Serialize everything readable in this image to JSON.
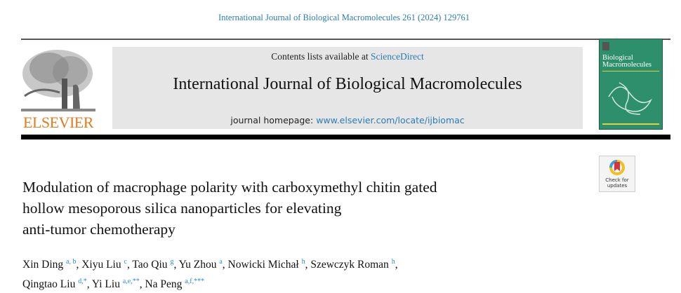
{
  "citation": "International Journal of Biological Macromolecules 261 (2024) 129761",
  "banner": {
    "contents_prefix": "Contents lists available at ",
    "contents_link": "ScienceDirect",
    "journal_title": "International Journal of Biological Macromolecules",
    "homepage_prefix": "journal homepage: ",
    "homepage_link": "www.elsevier.com/locate/ijbiomac"
  },
  "publisher": "ELSEVIER",
  "cover": {
    "title_line1": "Biological",
    "title_line2": "Macromolecules",
    "color": "#2e8f6d"
  },
  "badge": {
    "line1": "Check for",
    "line2": "updates"
  },
  "article": {
    "title_lines": [
      "Modulation of macrophage polarity with carboxymethyl chitin gated",
      "hollow mesoporous silica nanoparticles for elevating",
      "anti-tumor chemotherapy"
    ],
    "authors": [
      {
        "name": "Xin Ding",
        "aff": "a, b"
      },
      {
        "name": "Xiyu Liu",
        "aff": "c"
      },
      {
        "name": "Tao Qiu",
        "aff": "g"
      },
      {
        "name": "Yu Zhou",
        "aff": "a"
      },
      {
        "name": "Nowicki Michał",
        "aff": "h"
      },
      {
        "name": "Szewczyk Roman",
        "aff": "h"
      },
      {
        "name": "Qingtao Liu",
        "aff": "d,*"
      },
      {
        "name": "Yi Liu",
        "aff": "a,e,**"
      },
      {
        "name": "Na Peng",
        "aff": "a,f,***"
      }
    ]
  }
}
